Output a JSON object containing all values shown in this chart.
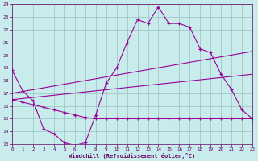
{
  "xlabel": "Windchill (Refroidissement éolien,°C)",
  "xlim": [
    0,
    23
  ],
  "ylim": [
    13,
    24
  ],
  "yticks": [
    13,
    14,
    15,
    16,
    17,
    18,
    19,
    20,
    21,
    22,
    23,
    24
  ],
  "xticks": [
    0,
    1,
    2,
    3,
    4,
    5,
    6,
    7,
    8,
    9,
    10,
    11,
    12,
    13,
    14,
    15,
    16,
    17,
    18,
    19,
    20,
    21,
    22,
    23
  ],
  "background_color": "#c8ecec",
  "grid_color": "#9dbfbf",
  "line_color": "#990099",
  "line1_x": [
    0,
    1,
    2,
    3,
    4,
    5,
    6,
    7,
    8,
    9,
    10,
    11,
    12,
    13,
    14,
    15,
    16,
    17,
    18,
    19,
    20,
    21,
    22,
    23
  ],
  "line1_y": [
    18.8,
    17.2,
    16.4,
    14.2,
    13.8,
    13.1,
    12.9,
    13.1,
    15.3,
    17.8,
    19.0,
    21.0,
    22.8,
    22.5,
    23.8,
    22.5,
    22.5,
    22.2,
    20.5,
    20.2,
    18.5,
    17.3,
    15.7,
    15.0
  ],
  "line2_x": [
    0,
    1,
    2,
    3,
    4,
    5,
    6,
    7,
    8,
    9,
    10,
    11,
    12,
    13,
    14,
    15,
    16,
    17,
    18,
    19,
    20,
    21,
    22,
    23
  ],
  "line2_y": [
    16.5,
    16.3,
    16.1,
    15.9,
    15.7,
    15.5,
    15.3,
    15.1,
    15.0,
    15.0,
    15.0,
    15.0,
    15.0,
    15.0,
    15.0,
    15.0,
    15.0,
    15.0,
    15.0,
    15.0,
    15.0,
    15.0,
    15.0,
    15.0
  ],
  "line3_x": [
    0,
    23
  ],
  "line3_y": [
    17.0,
    20.3
  ],
  "line4_x": [
    0,
    23
  ],
  "line4_y": [
    16.5,
    18.5
  ]
}
